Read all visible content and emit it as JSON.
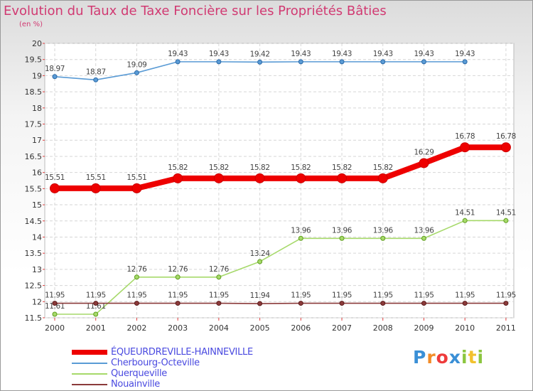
{
  "title": "Evolution du Taux de Taxe Foncière sur les Propriétés Bâties",
  "subtitle": "(en %)",
  "logo_text": "Proxiti",
  "chart_data": {
    "type": "line",
    "title": "Evolution du Taux de Taxe Foncière sur les Propriétés Bâties",
    "ylabel": "(en %)",
    "xlabel": "",
    "x": [
      "2000",
      "2001",
      "2002",
      "2003",
      "2004",
      "2005",
      "2006",
      "2007",
      "2008",
      "2009",
      "2010",
      "2011"
    ],
    "ylim": [
      11.5,
      20
    ],
    "yticks": [
      "11.5",
      "12",
      "12.5",
      "13",
      "13.5",
      "14",
      "14.5",
      "15",
      "15.5",
      "16",
      "16.5",
      "17",
      "17.5",
      "18",
      "18.5",
      "19",
      "19.5",
      "20"
    ],
    "grid": true,
    "legend_position": "bottom-left",
    "series": [
      {
        "name": "ÉQUEURDREVILLE-HAINNEVILLE",
        "color": "#ee0000",
        "points": true,
        "values": [
          15.51,
          15.51,
          15.51,
          15.82,
          15.82,
          15.82,
          15.82,
          15.82,
          15.82,
          16.29,
          16.78,
          16.78
        ],
        "labels": [
          "15.51",
          "15.51",
          "15.51",
          "15.82",
          "15.82",
          "15.82",
          "15.82",
          "15.82",
          "15.82",
          "16.29",
          "16.78",
          "16.78"
        ]
      },
      {
        "name": "Cherbourg-Octeville",
        "color": "#5a9bd5",
        "values": [
          18.97,
          18.87,
          19.09,
          19.43,
          19.43,
          19.42,
          19.43,
          19.43,
          19.43,
          19.43,
          19.43,
          null
        ],
        "labels": [
          "18.97",
          "18.87",
          "19.09",
          "19.43",
          "19.43",
          "19.42",
          "19.43",
          "19.43",
          "19.43",
          "19.43",
          "19.43",
          null
        ]
      },
      {
        "name": "Querqueville",
        "color": "#a6d96a",
        "values": [
          11.61,
          11.61,
          12.76,
          12.76,
          12.76,
          13.24,
          13.96,
          13.96,
          13.96,
          13.96,
          14.51,
          14.51
        ],
        "labels": [
          "11.61",
          "11.61",
          "12.76",
          "12.76",
          "12.76",
          "13.24",
          "13.96",
          "13.96",
          "13.96",
          "13.96",
          "14.51",
          "14.51"
        ]
      },
      {
        "name": "Nouainville",
        "color": "#8b3a3a",
        "values": [
          11.95,
          11.95,
          11.95,
          11.95,
          11.95,
          11.94,
          11.95,
          11.95,
          11.95,
          11.95,
          11.95,
          11.95
        ],
        "labels": [
          "11.95",
          "11.95",
          "11.95",
          "11.95",
          "11.95",
          "11.94",
          "11.95",
          "11.95",
          "11.95",
          "11.95",
          "11.95",
          "11.95"
        ]
      }
    ]
  }
}
